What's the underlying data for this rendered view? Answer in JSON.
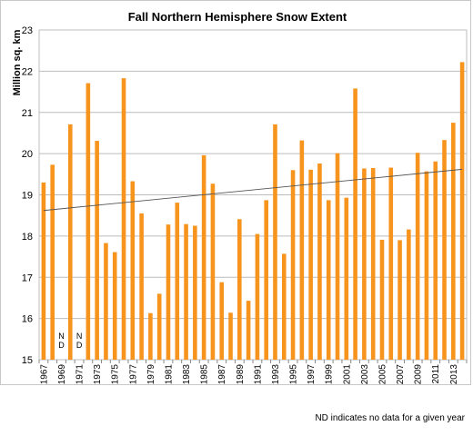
{
  "chart_data": {
    "type": "bar",
    "title": "Fall Northern Hemisphere Snow Extent",
    "ylabel": "Million sq. km",
    "xlabel": "",
    "ylim": [
      15,
      23
    ],
    "yticks": [
      15,
      16,
      17,
      18,
      19,
      20,
      21,
      22,
      23
    ],
    "grid": true,
    "categories": [
      "1967",
      "1968",
      "1969",
      "1970",
      "1971",
      "1972",
      "1973",
      "1974",
      "1975",
      "1976",
      "1977",
      "1978",
      "1979",
      "1980",
      "1981",
      "1982",
      "1983",
      "1984",
      "1985",
      "1986",
      "1987",
      "1988",
      "1989",
      "1990",
      "1991",
      "1992",
      "1993",
      "1994",
      "1995",
      "1996",
      "1997",
      "1998",
      "1999",
      "2000",
      "2001",
      "2002",
      "2003",
      "2004",
      "2005",
      "2006",
      "2007",
      "2008",
      "2009",
      "2010",
      "2011",
      "2012",
      "2013",
      "2014"
    ],
    "tick_labels": [
      "1967",
      "1969",
      "1971",
      "1973",
      "1975",
      "1977",
      "1979",
      "1981",
      "1983",
      "1985",
      "1987",
      "1989",
      "1991",
      "1993",
      "1995",
      "1997",
      "1999",
      "2001",
      "2003",
      "2005",
      "2007",
      "2009",
      "2011",
      "2013"
    ],
    "values": [
      19.3,
      19.73,
      null,
      20.71,
      null,
      21.71,
      20.31,
      17.83,
      17.61,
      21.83,
      19.33,
      18.55,
      16.13,
      16.6,
      18.28,
      18.81,
      18.29,
      18.25,
      19.96,
      19.27,
      16.88,
      16.14,
      18.41,
      16.43,
      18.05,
      18.87,
      20.71,
      17.57,
      19.6,
      20.32,
      19.61,
      19.76,
      18.87,
      20.01,
      18.93,
      21.58,
      19.64,
      19.65,
      17.91,
      19.66,
      17.9,
      18.16,
      20.02,
      19.57,
      19.81,
      20.33,
      20.75,
      22.22
    ],
    "no_data_label": "N D",
    "trendline": {
      "start": 18.62,
      "end": 19.62
    },
    "bar_color": "#F7941D",
    "trend_color": "#555555",
    "grid_color": "#bcbcbc"
  },
  "footnote": "ND indicates no data for a given year"
}
